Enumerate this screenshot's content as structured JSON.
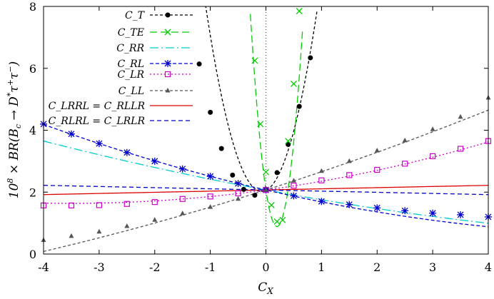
{
  "chart_data": {
    "type": "line",
    "xlabel": "C_X",
    "ylabel": "10^8 × BR(B_c → D^* τ^+ τ^-)",
    "xlim": [
      -4,
      4
    ],
    "ylim": [
      0,
      8
    ],
    "xticks": [
      "-4",
      "-3",
      "-2",
      "-1",
      "0",
      "1",
      "2",
      "3",
      "4"
    ],
    "yticks": [
      "0",
      "2",
      "4",
      "6",
      "8"
    ],
    "grid": false,
    "legend_position": "top-left",
    "zero_line": "dotted-vertical-at-x0",
    "series": [
      {
        "name": "C_T",
        "color": "#000000",
        "dash": "4,3",
        "marker": "circle",
        "curve": {
          "type": "quadratic",
          "a": 5.9,
          "b": 0.89,
          "c": 2.05,
          "x_min": -1.45,
          "x_max": 0.92
        },
        "x": [
          -1.2,
          -1.0,
          -0.8,
          -0.6,
          -0.4,
          -0.2,
          0.0,
          0.2,
          0.4,
          0.6,
          0.8
        ],
        "y": [
          6.14,
          4.58,
          3.41,
          2.55,
          2.09,
          1.9,
          2.08,
          2.63,
          3.54,
          4.77,
          6.34
        ]
      },
      {
        "name": "C_TE",
        "color": "#00cc00",
        "dash": "10,5",
        "marker": "x",
        "curve": {
          "type": "quadratic",
          "a": 30.0,
          "b": -11.9,
          "c": 2.07,
          "x_min": -0.28,
          "x_max": 0.66
        },
        "x": [
          -0.2,
          -0.1,
          0.0,
          0.1,
          0.2,
          0.3,
          0.4,
          0.5,
          0.6
        ],
        "y": [
          6.25,
          4.2,
          2.65,
          1.58,
          1.05,
          1.1,
          3.65,
          5.5,
          7.85
        ]
      },
      {
        "name": "C_RR",
        "color": "#00cccc",
        "dash": "12,4,2,4",
        "marker": "none",
        "curve": {
          "type": "quadratic",
          "a": 0.0158,
          "b": -0.332,
          "c": 2.07,
          "x_min": -4,
          "x_max": 4
        },
        "x": [
          -4,
          -3,
          -2,
          -1,
          0,
          1,
          2,
          3,
          4
        ],
        "y": [
          3.65,
          3.21,
          2.8,
          2.42,
          2.07,
          1.75,
          1.47,
          1.22,
          1.0
        ]
      },
      {
        "name": "C_RL",
        "color": "#0000cc",
        "dash": "5,3",
        "marker": "star",
        "curve": {
          "type": "quadratic",
          "a": 0.029,
          "b": -0.413,
          "c": 2.07,
          "x_min": -4,
          "x_max": 4
        },
        "x": [
          -4,
          -3.5,
          -3,
          -2.5,
          -2,
          -1.5,
          -1,
          -0.5,
          0,
          0.5,
          1,
          1.5,
          2,
          2.5,
          3,
          3.5,
          4
        ],
        "y": [
          4.2,
          3.88,
          3.57,
          3.28,
          3.0,
          2.75,
          2.51,
          2.28,
          2.07,
          1.88,
          1.7,
          1.6,
          1.49,
          1.4,
          1.32,
          1.27,
          1.2
        ]
      },
      {
        "name": "C_LR",
        "color": "#cc00cc",
        "dash": "2,3",
        "marker": "square",
        "curve": {
          "type": "quadratic",
          "a": 0.0352,
          "b": 0.247,
          "c": 2.07,
          "x_min": -4,
          "x_max": 4
        },
        "x": [
          -4,
          -3.5,
          -3,
          -2.5,
          -2,
          -1.5,
          -1,
          -0.5,
          0,
          0.5,
          1,
          1.5,
          2,
          2.5,
          3,
          3.5,
          4
        ],
        "y": [
          1.57,
          1.57,
          1.58,
          1.62,
          1.68,
          1.78,
          1.86,
          1.96,
          2.07,
          2.21,
          2.38,
          2.55,
          2.72,
          2.92,
          3.16,
          3.4,
          3.65
        ]
      },
      {
        "name": "C_LL",
        "color": "#555555",
        "dash": "4,3",
        "marker": "triangle",
        "curve": {
          "type": "quadratic",
          "a": 0.0186,
          "b": 0.571,
          "c": 2.07,
          "x_min": -4,
          "x_max": 4
        },
        "x": [
          -4,
          -3.5,
          -3,
          -2.5,
          -2,
          -1.5,
          -1,
          -0.5,
          0,
          0.5,
          1,
          1.5,
          2,
          2.5,
          3,
          3.5,
          4
        ],
        "y": [
          0.45,
          0.58,
          0.72,
          0.9,
          1.1,
          1.31,
          1.52,
          1.78,
          2.07,
          2.37,
          2.68,
          3.0,
          3.34,
          3.67,
          4.03,
          4.43,
          5.05
        ]
      },
      {
        "name": "C_LRRL = C_RLLR",
        "color": "#dd0000",
        "dash": "",
        "marker": "none",
        "curve": {
          "type": "quadratic",
          "a": 0.0,
          "b": 0.0375,
          "c": 2.07,
          "x_min": -4,
          "x_max": 4
        },
        "x": [
          -4,
          4
        ],
        "y": [
          2.0,
          2.3
        ]
      },
      {
        "name": "C_RLRL = C_LRLR",
        "color": "#0000cc",
        "dash": "6,4",
        "marker": "none",
        "curve": {
          "type": "quadratic",
          "a": 0.0,
          "b": -0.0375,
          "c": 2.07,
          "x_min": -4,
          "x_max": 4
        },
        "x": [
          -4,
          4
        ],
        "y": [
          2.3,
          2.0
        ]
      }
    ]
  }
}
